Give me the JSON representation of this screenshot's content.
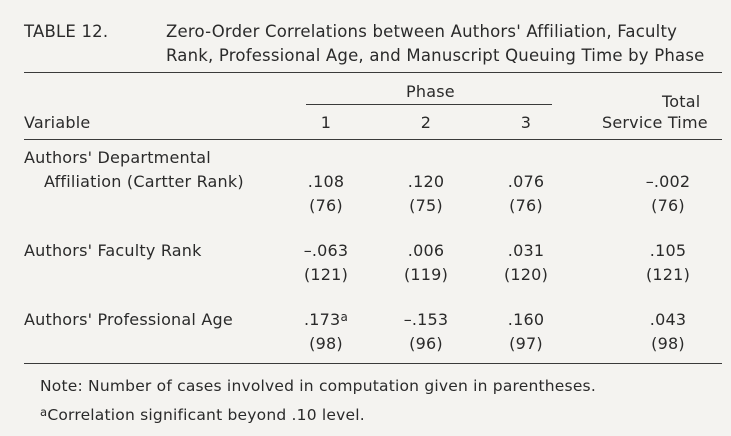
{
  "table": {
    "label": "TABLE 12.",
    "title_line1": "Zero-Order Correlations between Authors' Affiliation, Faculty",
    "title_line2": "Rank, Professional Age, and Manuscript Queuing Time by Phase",
    "header": {
      "variable": "Variable",
      "phase": "Phase",
      "phase_cols": [
        "1",
        "2",
        "3"
      ],
      "total_line1": "Total",
      "total_line2": "Service Time"
    },
    "rows": [
      {
        "label_line1": "Authors' Departmental",
        "label_line2": "Affiliation (Cartter Rank)",
        "corr": [
          ".108",
          ".120",
          ".076",
          "–.002"
        ],
        "n": [
          "(76)",
          "(75)",
          "(76)",
          "(76)"
        ]
      },
      {
        "label": "Authors' Faculty Rank",
        "corr": [
          "–.063",
          ".006",
          ".031",
          ".105"
        ],
        "n": [
          "(121)",
          "(119)",
          "(120)",
          "(121)"
        ]
      },
      {
        "label": "Authors' Professional Age",
        "corr": [
          ".173",
          "–.153",
          ".160",
          ".043"
        ],
        "corr_first_sup": "a",
        "n": [
          "(98)",
          "(96)",
          "(97)",
          "(98)"
        ]
      }
    ],
    "notes": {
      "note1": "Note: Number of cases involved in computation given in parentheses.",
      "note2_sup": "a",
      "note2": "Correlation significant beyond .10 level."
    }
  }
}
